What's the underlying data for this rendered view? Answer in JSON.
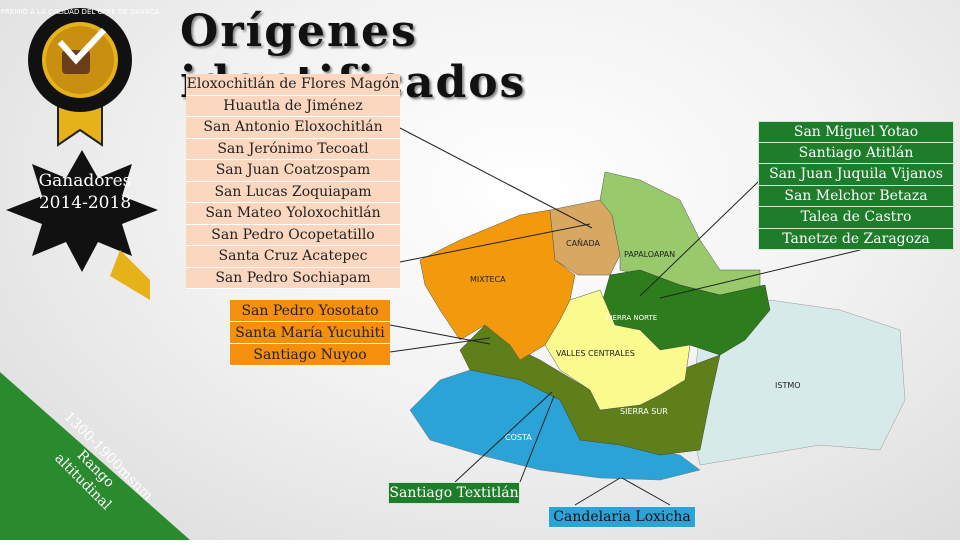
{
  "title": "Orígenes identificados",
  "badge": {
    "ring_text": "· PREMIO A LA CALIDAD DEL CAFÉ DE OAXACA ·",
    "icon": "coffee-cup-checkmark-icon"
  },
  "winners": {
    "line1": "Ganadores",
    "line2": "2014-2018"
  },
  "range": {
    "line1": "1300-1900msnm",
    "line2": "Rango",
    "line3": "altitudinal"
  },
  "map": {
    "regions": [
      {
        "id": "mixteca",
        "label": "MIXTECA",
        "color": "#f39a0c"
      },
      {
        "id": "canada",
        "label": "CAÑADA",
        "color": "#d8a862"
      },
      {
        "id": "papaloapan",
        "label": "PAPALOAPAN",
        "color": "#98c96a"
      },
      {
        "id": "sierra-norte",
        "label": "SIERRA NORTE",
        "color": "#2e7d1d"
      },
      {
        "id": "valles-centrales",
        "label": "VALLES CENTRALES",
        "color": "#fafa8e"
      },
      {
        "id": "sierra-sur",
        "label": "SIERRA SUR",
        "color": "#5e7f1a"
      },
      {
        "id": "costa",
        "label": "COSTA",
        "color": "#2ba3d7"
      },
      {
        "id": "istmo",
        "label": "ISTMO",
        "color": "#d7eaea"
      }
    ]
  },
  "lists": {
    "canada_mazateca": [
      "Eloxochitlán de Flores Magón",
      "Huautla de Jiménez",
      "San Antonio Eloxochitlán",
      "San Jerónimo Tecoatl",
      "San Juan Coatzospam",
      "San Lucas Zoquiapam",
      "San Mateo Yoloxochitlán",
      "San Pedro Ocopetatillo",
      "Santa Cruz Acatepec",
      "San Pedro Sochiapam"
    ],
    "mixteca": [
      "San Pedro Yosotato",
      "Santa María Yucuhiti",
      "Santiago Nuyoo"
    ],
    "sierra_norte": [
      "San Miguel Yotao",
      "Santiago Atitlán",
      "San Juan Juquila Vijanos",
      "San Melchor Betaza",
      "Talea de Castro",
      "Tanetze de Zaragoza"
    ],
    "sierra_sur": "Santiago Textitlán",
    "costa": "Candelaria Loxicha"
  },
  "colors": {
    "peach": "#fcd7c0",
    "orange": "#f5900e",
    "green": "#1e7d2a",
    "blue": "#2ba3d7",
    "gold": "#e5b21a",
    "black": "#111111"
  }
}
